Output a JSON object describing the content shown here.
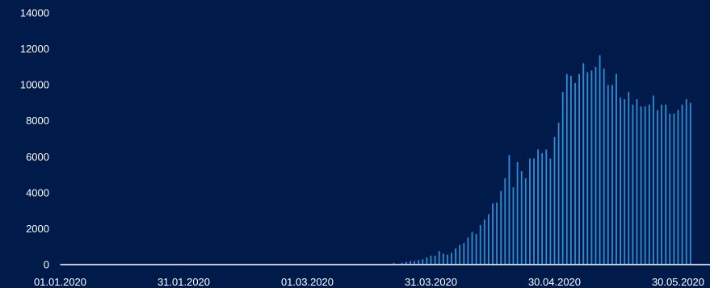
{
  "colors": {
    "background": "#001a4a",
    "bar": "#2b8fd6",
    "axis": "#ffffff",
    "text": "#ffffff"
  },
  "chart_data": {
    "type": "bar",
    "title": "",
    "xlabel": "",
    "ylabel": "",
    "grid": false,
    "legend": "none",
    "ylim": [
      0,
      14000
    ],
    "y_ticks": [
      "0",
      "2000",
      "4000",
      "6000",
      "8000",
      "10000",
      "12000",
      "14000"
    ],
    "x_ticks": [
      {
        "date": "2020-01-01",
        "label": "01.01.2020"
      },
      {
        "date": "2020-01-31",
        "label": "31.01.2020"
      },
      {
        "date": "2020-03-01",
        "label": "01.03.2020"
      },
      {
        "date": "2020-03-31",
        "label": "31.03.2020"
      },
      {
        "date": "2020-04-30",
        "label": "30.04.2020"
      },
      {
        "date": "2020-05-30",
        "label": "30.05.2020"
      }
    ],
    "x": [
      "2020-03-22",
      "2020-03-23",
      "2020-03-24",
      "2020-03-25",
      "2020-03-26",
      "2020-03-27",
      "2020-03-28",
      "2020-03-29",
      "2020-03-30",
      "2020-03-31",
      "2020-04-01",
      "2020-04-02",
      "2020-04-03",
      "2020-04-04",
      "2020-04-05",
      "2020-04-06",
      "2020-04-07",
      "2020-04-08",
      "2020-04-09",
      "2020-04-10",
      "2020-04-11",
      "2020-04-12",
      "2020-04-13",
      "2020-04-14",
      "2020-04-15",
      "2020-04-16",
      "2020-04-17",
      "2020-04-18",
      "2020-04-19",
      "2020-04-20",
      "2020-04-21",
      "2020-04-22",
      "2020-04-23",
      "2020-04-24",
      "2020-04-25",
      "2020-04-26",
      "2020-04-27",
      "2020-04-28",
      "2020-04-29",
      "2020-04-30",
      "2020-05-01",
      "2020-05-02",
      "2020-05-03",
      "2020-05-04",
      "2020-05-05",
      "2020-05-06",
      "2020-05-07",
      "2020-05-08",
      "2020-05-09",
      "2020-05-10",
      "2020-05-11",
      "2020-05-12",
      "2020-05-13",
      "2020-05-14",
      "2020-05-15",
      "2020-05-16",
      "2020-05-17",
      "2020-05-18",
      "2020-05-19",
      "2020-05-20",
      "2020-05-21",
      "2020-05-22",
      "2020-05-23",
      "2020-05-24",
      "2020-05-25",
      "2020-05-26",
      "2020-05-27",
      "2020-05-28",
      "2020-05-29",
      "2020-05-30",
      "2020-05-31",
      "2020-06-01",
      "2020-06-02"
    ],
    "values": [
      100,
      0,
      100,
      150,
      200,
      200,
      250,
      300,
      400,
      500,
      500,
      750,
      600,
      550,
      650,
      900,
      1100,
      1200,
      1500,
      1800,
      1700,
      2200,
      2500,
      2800,
      3400,
      3450,
      4100,
      4800,
      6100,
      4300,
      5700,
      5200,
      4800,
      5900,
      5900,
      6400,
      6200,
      6400,
      5900,
      7100,
      7900,
      9600,
      10600,
      10500,
      10100,
      10600,
      11200,
      10700,
      10800,
      11000,
      11650,
      10900,
      10000,
      10000,
      10600,
      9300,
      9200,
      9600,
      8900,
      9200,
      8800,
      8800,
      8900,
      9400,
      8600,
      8900,
      8900,
      8400,
      8400,
      8600,
      8900,
      9200,
      9000
    ]
  }
}
